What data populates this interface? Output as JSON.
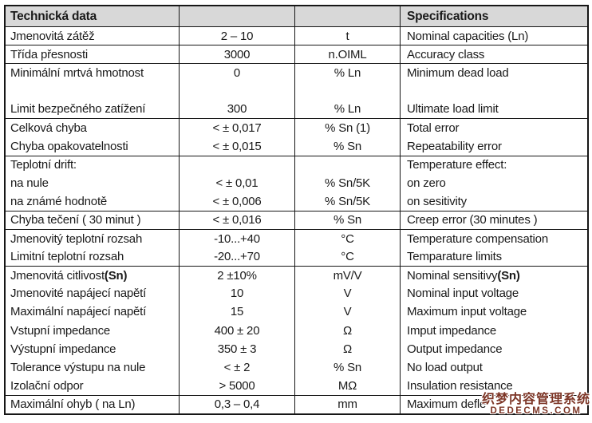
{
  "table": {
    "header": {
      "czech": "Technická data",
      "english": "Specifications"
    },
    "groups": [
      {
        "rows": [
          {
            "czech": "Jmenovitá zátěž",
            "value": "2 – 10",
            "unit": "t",
            "english": "Nominal capacities (Ln)"
          }
        ]
      },
      {
        "rows": [
          {
            "czech": "Třída přesnosti",
            "value": "3000",
            "unit": "n.OIML",
            "english": "Accuracy class"
          }
        ]
      },
      {
        "rows": [
          {
            "czech": "Minimální mrtvá hmotnost",
            "value": "0",
            "unit": "% Ln",
            "english": "Minimum dead load"
          },
          {
            "czech": "",
            "value": "",
            "unit": "",
            "english": ""
          },
          {
            "czech": "Limit bezpečného zatížení",
            "value": "300",
            "unit": "% Ln",
            "english": "Ultimate load limit"
          }
        ]
      },
      {
        "rows": [
          {
            "czech": "Celková chyba",
            "value": "< ± 0,017",
            "unit": "% Sn (1)",
            "english": "Total error"
          },
          {
            "czech": "Chyba opakovatelnosti",
            "value": "< ± 0,015",
            "unit": "% Sn",
            "english": "Repeatability error"
          }
        ]
      },
      {
        "rows": [
          {
            "czech": "Teplotní drift:",
            "value": "",
            "unit": "",
            "english": "Temperature effect:"
          },
          {
            "czech": "na nule",
            "value": "< ± 0,01",
            "unit": "% Sn/5K",
            "english": "on zero"
          },
          {
            "czech": "na známé hodnotě",
            "value": "< ± 0,006",
            "unit": "% Sn/5K",
            "english": "on sesitivity"
          }
        ]
      },
      {
        "rows": [
          {
            "czech": "Chyba tečení ( 30 minut )",
            "value": "< ± 0,016",
            "unit": "% Sn",
            "english": "Creep error (30 minutes )"
          }
        ]
      },
      {
        "rows": [
          {
            "czech": "Jmenovitý teplotní rozsah",
            "value": "-10...+40",
            "unit": "°C",
            "english": "Temperature compensation"
          },
          {
            "czech": "Limitní teplotní rozsah",
            "value": "-20...+70",
            "unit": "°C",
            "english": "Temparature limits"
          }
        ]
      },
      {
        "rows": [
          {
            "czech": "Jmenovitá citlivost ",
            "czech_b": "(Sn)",
            "value": "2 ±10%",
            "unit": "mV/V",
            "english": "Nominal sensitivy ",
            "english_b": "(Sn)"
          },
          {
            "czech": "Jmenovité napájecí napětí",
            "value": "10",
            "unit": "V",
            "english": "Nominal input voltage"
          },
          {
            "czech": "Maximální napájecí napětí",
            "value": "15",
            "unit": "V",
            "english": "Maximum input voltage"
          },
          {
            "czech": "Vstupní impedance",
            "value": "400 ± 20",
            "unit": "Ω",
            "english": "Imput impedance"
          },
          {
            "czech": "Výstupní impedance",
            "value": "350 ± 3",
            "unit": "Ω",
            "english": "Output impedance"
          },
          {
            "czech": "Tolerance výstupu na nule",
            "value": "< ± 2",
            "unit": "% Sn",
            "english": "No load output"
          },
          {
            "czech": "Izolační odpor",
            "value": "> 5000",
            "unit": "MΩ",
            "english": "Insulation resistance"
          }
        ]
      },
      {
        "rows": [
          {
            "czech": "Maximální ohyb ( na Ln)",
            "value": "0,3 – 0,4",
            "unit": "mm",
            "english": "Maximum defle"
          }
        ]
      }
    ]
  },
  "watermark": {
    "line1": "织梦内容管理系统",
    "line2": "DEDECMS.COM",
    "color": "#7c3526"
  }
}
